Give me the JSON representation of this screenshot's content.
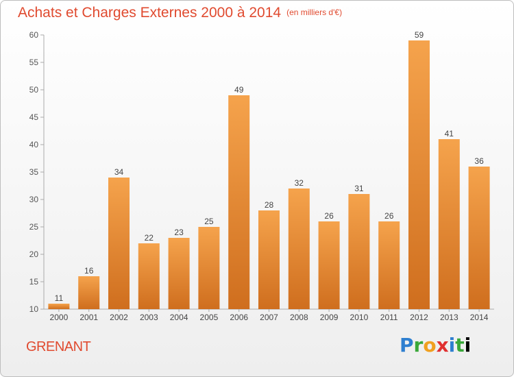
{
  "title": "Achats et Charges Externes 2000 à 2014",
  "unit": "(en milliers d'€)",
  "place": "GRENANT",
  "logo": [
    "P",
    "r",
    "o",
    "x",
    "i",
    "t",
    "i"
  ],
  "colors": {
    "bar_light": "#f5a34c",
    "bar_dark": "#cf6e1e",
    "title": "#e04a2f"
  },
  "chart_data": {
    "type": "bar",
    "categories": [
      "2000",
      "2001",
      "2002",
      "2003",
      "2004",
      "2005",
      "2006",
      "2007",
      "2008",
      "2009",
      "2010",
      "2011",
      "2012",
      "2013",
      "2014"
    ],
    "values": [
      11,
      16,
      34,
      22,
      23,
      25,
      49,
      28,
      32,
      26,
      31,
      26,
      59,
      41,
      36
    ],
    "ylim": [
      10,
      60
    ],
    "yticks": [
      10,
      15,
      20,
      25,
      30,
      35,
      40,
      45,
      50,
      55,
      60
    ],
    "grid": false,
    "title": "Achats et Charges Externes 2000 à 2014",
    "xlabel": "",
    "ylabel": ""
  }
}
